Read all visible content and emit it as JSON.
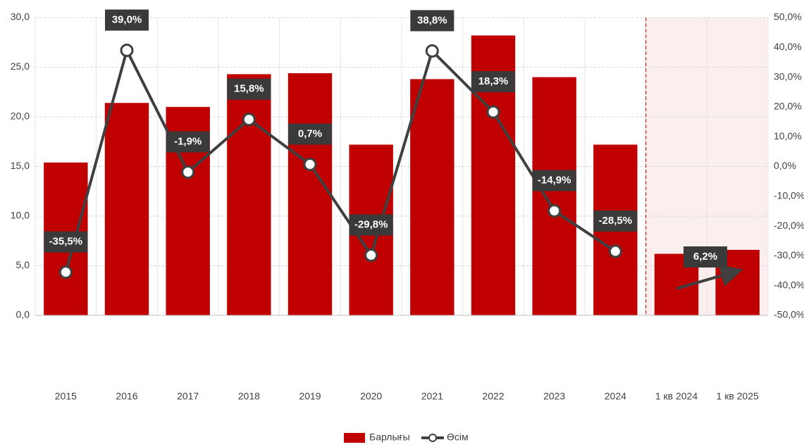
{
  "chart_data": {
    "type": "bar-line",
    "categories": [
      "2015",
      "2016",
      "2017",
      "2018",
      "2019",
      "2020",
      "2021",
      "2022",
      "2023",
      "2024",
      "1 кв 2024",
      "1 кв 2025"
    ],
    "series": [
      {
        "name": "Барлығы",
        "color": "#c00000",
        "values": [
          15.4,
          21.4,
          21.0,
          24.3,
          24.4,
          17.2,
          23.8,
          28.2,
          24.0,
          17.2,
          6.2,
          6.6
        ],
        "value_labels": [
          "15,4",
          "21,4",
          "21,0",
          "24,3",
          "24,4",
          "17,2",
          "23,8",
          "28,2",
          "24,0",
          "17,2",
          "6,2",
          "6,6"
        ]
      },
      {
        "name": "Өсім",
        "color": "#404040",
        "axis": "y2",
        "values": [
          -35.5,
          39.0,
          -1.9,
          15.8,
          0.7,
          -29.8,
          38.8,
          18.3,
          -14.9,
          -28.5,
          null,
          null
        ],
        "value_labels": [
          "-35,5%",
          "39,0%",
          "-1,9%",
          "15,8%",
          "0,7%",
          "-29,8%",
          "38,8%",
          "18,3%",
          "-14,9%",
          "-28,5%",
          null,
          null
        ]
      }
    ],
    "annotation": "6,2%",
    "ylim": [
      0,
      30
    ],
    "yticks": [
      {
        "value": 0,
        "label": "0,0"
      },
      {
        "value": 5,
        "label": "5,0"
      },
      {
        "value": 10,
        "label": "10,0"
      },
      {
        "value": 15,
        "label": "15,0"
      },
      {
        "value": 20,
        "label": "20,0"
      },
      {
        "value": 25,
        "label": "25,0"
      },
      {
        "value": 30,
        "label": "30,0"
      }
    ],
    "y2lim": [
      -50,
      50
    ],
    "y2ticks": [
      {
        "value": -50,
        "label": "-50,0%"
      },
      {
        "value": -40,
        "label": "-40,0%"
      },
      {
        "value": -30,
        "label": "-30,0%"
      },
      {
        "value": -20,
        "label": "-20,0%"
      },
      {
        "value": -10,
        "label": "-10,0%"
      },
      {
        "value": 0,
        "label": "0,0%"
      },
      {
        "value": 10,
        "label": "10,0%"
      },
      {
        "value": 20,
        "label": "20,0%"
      },
      {
        "value": 30,
        "label": "30,0%"
      },
      {
        "value": 40,
        "label": "40,0%"
      },
      {
        "value": 50,
        "label": "50,0%"
      }
    ],
    "grid": true
  }
}
